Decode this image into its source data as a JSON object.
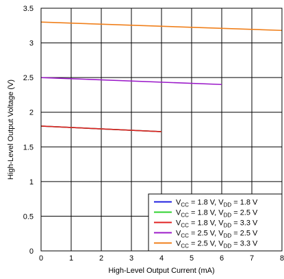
{
  "chart_data": {
    "type": "line",
    "xlabel": "High-Level Output Current (mA)",
    "ylabel": "High-Level Output Voltage (V)",
    "xlim": [
      0,
      8
    ],
    "ylim": [
      0,
      3.5
    ],
    "xticks": [
      "0",
      "1",
      "2",
      "3",
      "4",
      "5",
      "6",
      "7",
      "8"
    ],
    "yticks": [
      "0",
      "0.5",
      "1",
      "1.5",
      "2",
      "2.5",
      "3",
      "3.5"
    ],
    "grid": true,
    "legend_position": "bottom-right",
    "series": [
      {
        "vcc": "1.8 V",
        "vdd": "1.8 V",
        "color": "#1f1fe0",
        "x": [
          0,
          4
        ],
        "y": [
          1.8,
          1.72
        ]
      },
      {
        "vcc": "1.8 V",
        "vdd": "2.5 V",
        "color": "#2ed12e",
        "x": [
          0,
          4
        ],
        "y": [
          1.8,
          1.72
        ]
      },
      {
        "vcc": "1.8 V",
        "vdd": "3.3 V",
        "color": "#e02020",
        "x": [
          0,
          4
        ],
        "y": [
          1.8,
          1.72
        ]
      },
      {
        "vcc": "2.5 V",
        "vdd": "2.5 V",
        "color": "#9b19c9",
        "x": [
          0,
          6
        ],
        "y": [
          2.5,
          2.4
        ]
      },
      {
        "vcc": "2.5 V",
        "vdd": "3.3 V",
        "color": "#f07f1a",
        "x": [
          0,
          8
        ],
        "y": [
          3.3,
          3.18
        ]
      }
    ]
  }
}
